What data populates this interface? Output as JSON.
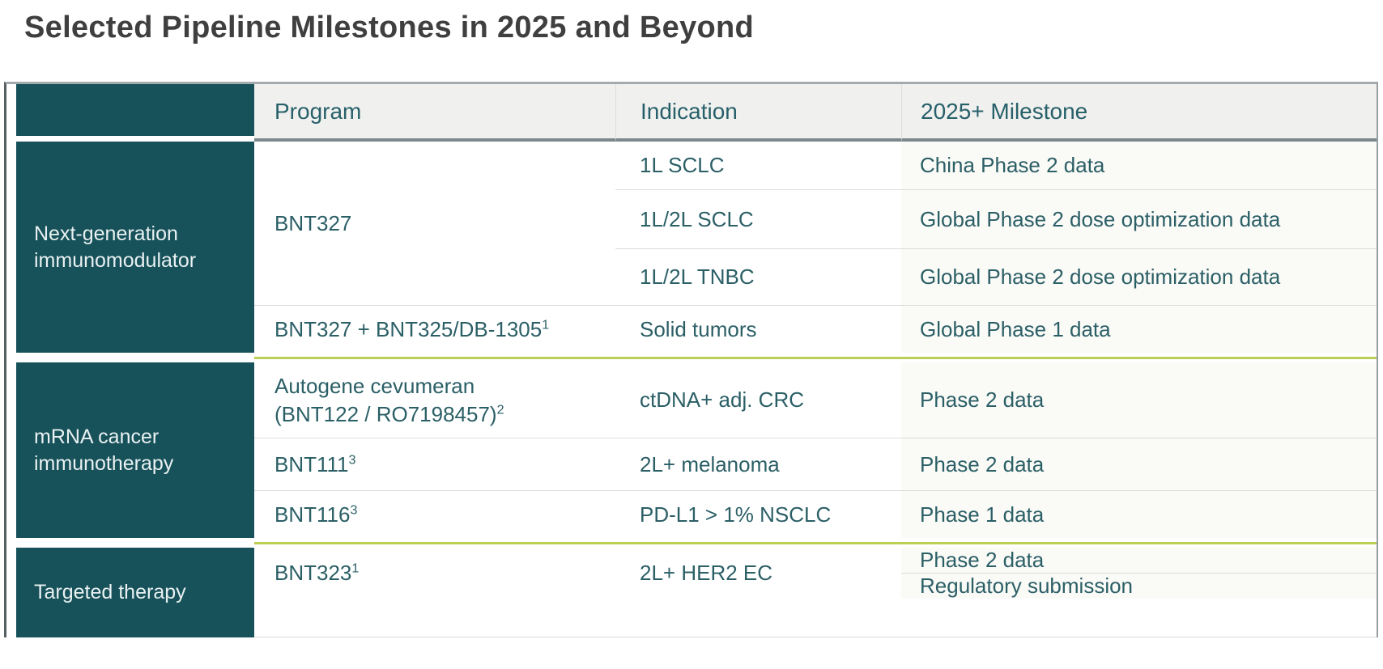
{
  "title": "Selected Pipeline Milestones in 2025 and Beyond",
  "colors": {
    "category_teal": "#175159",
    "text_teal": "#2b5f66",
    "section_divider_lime": "#bccf54",
    "header_background": "#f0f0ee"
  },
  "table": {
    "headers": {
      "program": "Program",
      "indication": "Indication",
      "milestone": "2025+ Milestone"
    },
    "sections": [
      {
        "category": "Next-generation immunomodulator",
        "program": "BNT327",
        "rows": [
          {
            "indication": "1L SCLC",
            "milestone": "China Phase 2 data"
          },
          {
            "indication": "1L/2L SCLC",
            "milestone": "Global Phase 2 dose optimization data"
          },
          {
            "indication": "1L/2L TNBC",
            "milestone": "Global Phase 2 dose optimization data"
          }
        ],
        "extra": {
          "program": "BNT327 + BNT325/DB-1305",
          "sup": "1",
          "indication": "Solid tumors",
          "milestone": "Global Phase 1 data"
        }
      },
      {
        "category": "mRNA cancer immunotherapy",
        "rows": [
          {
            "program_line1": "Autogene cevumeran",
            "program_line2": "(BNT122 / RO7198457)",
            "sup": "2",
            "indication": "ctDNA+ adj. CRC",
            "milestone": "Phase 2 data"
          },
          {
            "program": "BNT111",
            "sup": "3",
            "indication": "2L+ melanoma",
            "milestone": "Phase 2 data"
          },
          {
            "program": "BNT116",
            "sup": "3",
            "indication": "PD-L1 > 1% NSCLC",
            "milestone": "Phase 1 data"
          }
        ]
      },
      {
        "category": "Targeted therapy",
        "program": "BNT323",
        "sup": "1",
        "indication": "2L+ HER2 EC",
        "milestones": [
          "Phase 2 data",
          "Regulatory submission"
        ]
      }
    ]
  }
}
